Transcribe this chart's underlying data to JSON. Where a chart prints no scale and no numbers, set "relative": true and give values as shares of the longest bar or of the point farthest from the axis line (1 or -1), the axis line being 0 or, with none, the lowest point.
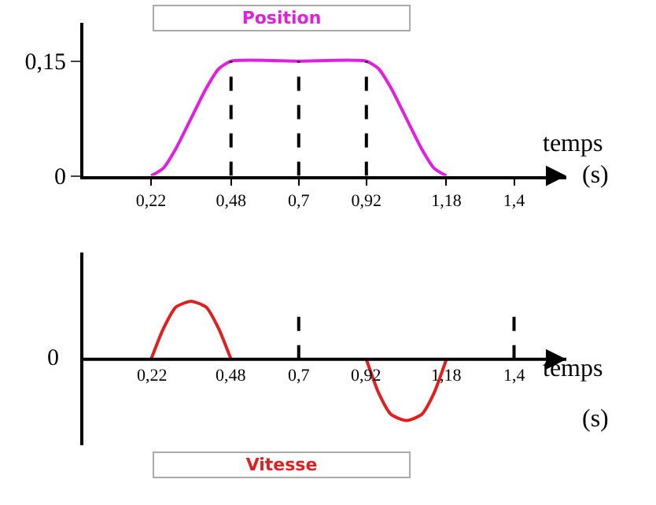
{
  "chart_data": [
    {
      "type": "line",
      "title": "Position",
      "xlabel": "temps",
      "annotations": [
        "(s)"
      ],
      "x": [
        0.22,
        0.26,
        0.3,
        0.35,
        0.4,
        0.44,
        0.48,
        0.7,
        0.92,
        0.96,
        1.0,
        1.05,
        1.1,
        1.14,
        1.18
      ],
      "series": [
        {
          "color": "#e020e0",
          "values": [
            0,
            0.01,
            0.035,
            0.075,
            0.115,
            0.14,
            0.15,
            0.15,
            0.15,
            0.14,
            0.115,
            0.075,
            0.035,
            0.01,
            0
          ]
        }
      ],
      "xlim": [
        0,
        1.57
      ],
      "ylim": [
        0,
        0.2
      ],
      "xticks": [
        {
          "value": 0.22,
          "label": "0,22"
        },
        {
          "value": 0.48,
          "label": "0,48"
        },
        {
          "value": 0.7,
          "label": "0,7"
        },
        {
          "value": 0.92,
          "label": "0,92"
        },
        {
          "value": 1.18,
          "label": "1,18"
        },
        {
          "value": 1.4,
          "label": "1,4"
        }
      ],
      "yticks": [
        0,
        {
          "value": 0.15,
          "label": "0,15"
        }
      ],
      "ref_lines": [
        {
          "axis": "x",
          "value": 0.48,
          "line_style": "dashed",
          "color": "#000000"
        },
        {
          "axis": "x",
          "value": 0.7,
          "line_style": "dashed",
          "color": "#000000"
        },
        {
          "axis": "x",
          "value": 0.92,
          "line_style": "dashed",
          "color": "#000000"
        }
      ],
      "marker": "none",
      "line_style": "solid"
    },
    {
      "type": "line",
      "title": "Vitesse",
      "xlabel": "temps",
      "relative": true,
      "annotations": [
        "0",
        "(s)"
      ],
      "x": [
        0.22,
        0.26,
        0.3,
        0.35,
        0.4,
        0.44,
        0.48,
        0.7,
        0.92,
        0.96,
        1.0,
        1.05,
        1.1,
        1.14,
        1.18
      ],
      "series": [
        {
          "color": "#e02020",
          "values": [
            0,
            0.5,
            0.85,
            0.95,
            0.85,
            0.5,
            0,
            null,
            0,
            -0.55,
            -0.9,
            -1,
            -0.9,
            -0.55,
            0
          ]
        }
      ],
      "xlim": [
        0,
        1.57
      ],
      "xticks": [
        {
          "value": 0.22,
          "label": "0,22"
        },
        {
          "value": 0.48,
          "label": "0,48"
        },
        {
          "value": 0.7,
          "label": "0,7"
        },
        {
          "value": 0.92,
          "label": "0,92"
        },
        {
          "value": 1.18,
          "label": "1,18"
        },
        {
          "value": 1.4,
          "label": "1,4"
        }
      ],
      "ref_lines": [
        {
          "axis": "x",
          "value": 0.7,
          "line_style": "dashed",
          "color": "#000000"
        },
        {
          "axis": "x",
          "value": 1.4,
          "line_style": "dashed",
          "color": "#000000"
        }
      ],
      "marker": "none",
      "line_style": "solid"
    }
  ]
}
